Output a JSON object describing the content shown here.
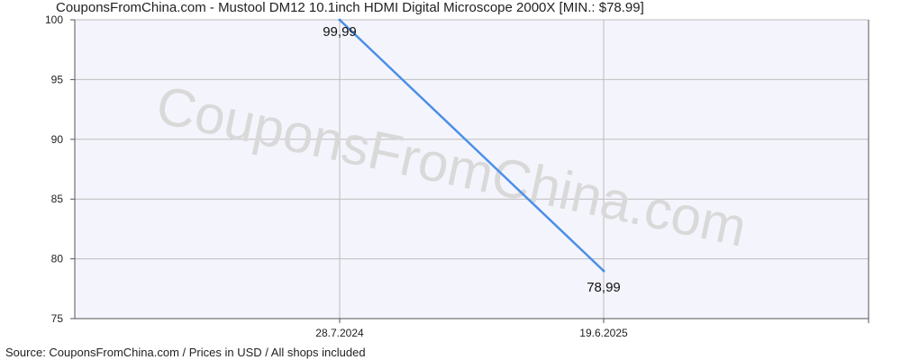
{
  "chart_data": {
    "type": "line",
    "title": "CouponsFromChina.com - Mustool DM12 10.1inch HDMI Digital Microscope 2000X [MIN.: $78.99]",
    "x": [
      "28.7.2024",
      "19.6.2025"
    ],
    "series": [
      {
        "values": [
          99.99,
          78.99
        ],
        "labels": [
          "99,99",
          "78,99"
        ],
        "color": "#4a8fe7"
      }
    ],
    "ylim": [
      75,
      100
    ],
    "yticks": [
      75,
      80,
      85,
      90,
      95,
      100
    ],
    "grid": true,
    "watermark": "CouponsFromChina.com",
    "source": "Source: CouponsFromChina.com / Prices in USD / All shops included"
  },
  "colors": {
    "plot_background": "#f4f4fc",
    "grid": "#bdbdbd",
    "axis": "#555555",
    "line": "#4a8fe7"
  }
}
